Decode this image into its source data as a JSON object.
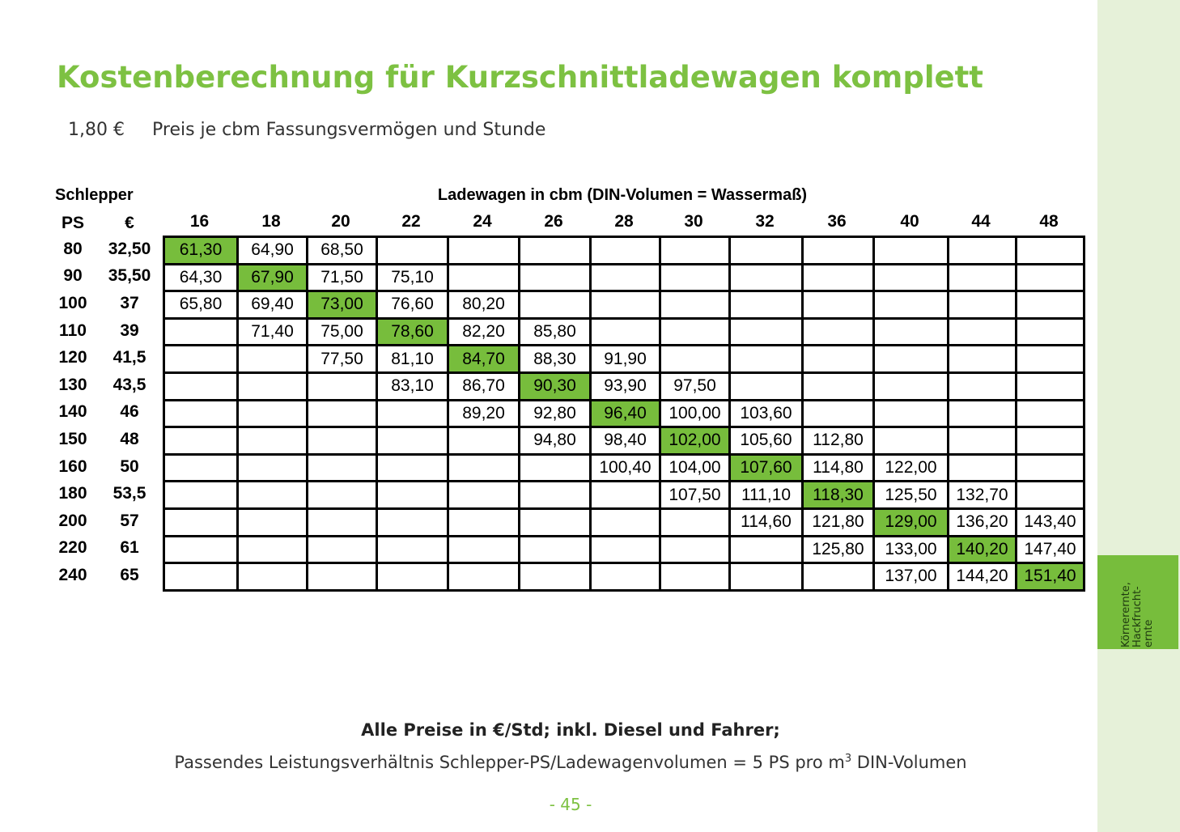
{
  "title": "Kostenberechnung für Kurzschnittladewagen komplett",
  "price": {
    "value": "1,80 €",
    "label": "Preis je cbm Fassungsvermögen und Stunde"
  },
  "table": {
    "schlepper_header": "Schlepper",
    "ladewagen_header": "Ladewagen in cbm (DIN-Volumen = Wassermaß)",
    "ps_header": "PS",
    "eur_header": "€",
    "columns": [
      "16",
      "18",
      "20",
      "22",
      "24",
      "26",
      "28",
      "30",
      "32",
      "36",
      "40",
      "44",
      "48"
    ],
    "rows": [
      {
        "ps": "80",
        "eur": "32,50",
        "cells": [
          "61,30",
          "64,90",
          "68,50",
          "",
          "",
          "",
          "",
          "",
          "",
          "",
          "",
          "",
          ""
        ]
      },
      {
        "ps": "90",
        "eur": "35,50",
        "cells": [
          "64,30",
          "67,90",
          "71,50",
          "75,10",
          "",
          "",
          "",
          "",
          "",
          "",
          "",
          "",
          ""
        ]
      },
      {
        "ps": "100",
        "eur": "37",
        "cells": [
          "65,80",
          "69,40",
          "73,00",
          "76,60",
          "80,20",
          "",
          "",
          "",
          "",
          "",
          "",
          "",
          ""
        ]
      },
      {
        "ps": "110",
        "eur": "39",
        "cells": [
          "",
          "71,40",
          "75,00",
          "78,60",
          "82,20",
          "85,80",
          "",
          "",
          "",
          "",
          "",
          "",
          ""
        ]
      },
      {
        "ps": "120",
        "eur": "41,5",
        "cells": [
          "",
          "",
          "77,50",
          "81,10",
          "84,70",
          "88,30",
          "91,90",
          "",
          "",
          "",
          "",
          "",
          ""
        ]
      },
      {
        "ps": "130",
        "eur": "43,5",
        "cells": [
          "",
          "",
          "",
          "83,10",
          "86,70",
          "90,30",
          "93,90",
          "97,50",
          "",
          "",
          "",
          "",
          ""
        ]
      },
      {
        "ps": "140",
        "eur": "46",
        "cells": [
          "",
          "",
          "",
          "",
          "89,20",
          "92,80",
          "96,40",
          "100,00",
          "103,60",
          "",
          "",
          "",
          ""
        ]
      },
      {
        "ps": "150",
        "eur": "48",
        "cells": [
          "",
          "",
          "",
          "",
          "",
          "94,80",
          "98,40",
          "102,00",
          "105,60",
          "112,80",
          "",
          "",
          ""
        ]
      },
      {
        "ps": "160",
        "eur": "50",
        "cells": [
          "",
          "",
          "",
          "",
          "",
          "",
          "100,40",
          "104,00",
          "107,60",
          "114,80",
          "122,00",
          "",
          ""
        ]
      },
      {
        "ps": "180",
        "eur": "53,5",
        "cells": [
          "",
          "",
          "",
          "",
          "",
          "",
          "",
          "107,50",
          "111,10",
          "118,30",
          "125,50",
          "132,70",
          ""
        ]
      },
      {
        "ps": "200",
        "eur": "57",
        "cells": [
          "",
          "",
          "",
          "",
          "",
          "",
          "",
          "",
          "114,60",
          "121,80",
          "129,00",
          "136,20",
          "143,40"
        ]
      },
      {
        "ps": "220",
        "eur": "61",
        "cells": [
          "",
          "",
          "",
          "",
          "",
          "",
          "",
          "",
          "",
          "125,80",
          "133,00",
          "140,20",
          "147,40"
        ]
      },
      {
        "ps": "240",
        "eur": "65",
        "cells": [
          "",
          "",
          "",
          "",
          "",
          "",
          "",
          "",
          "",
          "",
          "137,00",
          "144,20",
          "151,40"
        ]
      }
    ],
    "highlight_col_index": [
      0,
      1,
      2,
      3,
      4,
      5,
      6,
      7,
      8,
      9,
      10,
      11,
      12
    ],
    "highlight_color": "#77bd3c"
  },
  "note_bold": "Alle Preise in €/Std; inkl. Diesel und Fahrer;",
  "note": {
    "text": "Passendes Leistungsverhältnis Schlepper-PS/Ladewagenvolumen = 5 PS pro m",
    "sup": "3",
    "tail": " DIN-Volumen"
  },
  "page_number": "- 45 -",
  "side_tab": "Körnerernte,\nHackfrucht-\nernte",
  "colors": {
    "accent_green": "#7dc142",
    "sidebar_bg": "#e6f1d9",
    "tab_bg": "#77bd3c"
  }
}
